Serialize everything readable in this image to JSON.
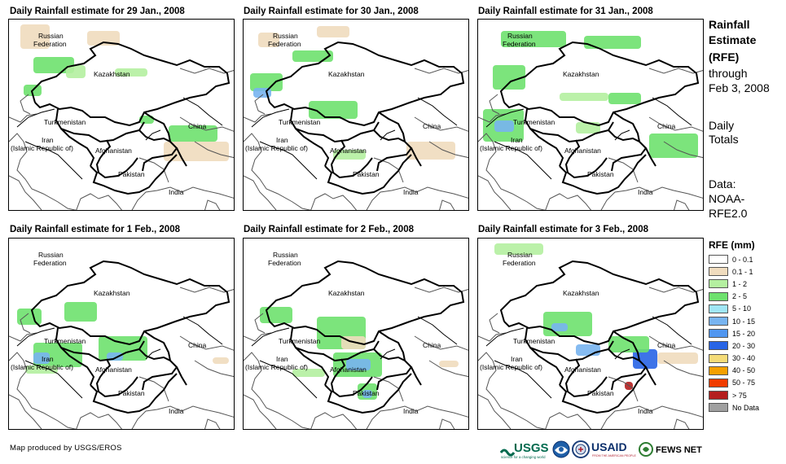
{
  "panels": [
    {
      "title": "Daily Rainfall estimate for 29 Jan., 2008",
      "date": "29 Jan."
    },
    {
      "title": "Daily Rainfall estimate for 30 Jan., 2008",
      "date": "30 Jan."
    },
    {
      "title": "Daily Rainfall estimate for 31 Jan., 2008",
      "date": "31 Jan."
    },
    {
      "title": "Daily Rainfall estimate for 1 Feb., 2008",
      "date": "1 Feb."
    },
    {
      "title": "Daily Rainfall estimate for 2 Feb., 2008",
      "date": "2 Feb."
    },
    {
      "title": "Daily Rainfall estimate for 3 Feb., 2008",
      "date": "3 Feb."
    }
  ],
  "map_labels": {
    "russia_1": "Russian",
    "russia_2": "Federation",
    "kazakhstan": "Kazakhstan",
    "turkmenistan": "Turkmenistan",
    "iran_1": "Iran",
    "iran_2": "(Islamic Republic of)",
    "afghanistan": "Afghanistan",
    "pakistan": "Pakistan",
    "china": "China",
    "india": "India"
  },
  "side_panel": {
    "title_line1": "Rainfall",
    "title_line2": "Estimate",
    "title_line3": "(RFE)",
    "through": "through",
    "through_date": "Feb 3, 2008",
    "daily": "Daily",
    "totals": "Totals",
    "data_label": "Data:",
    "data_source_1": "NOAA-",
    "data_source_2": "RFE2.0"
  },
  "legend": {
    "title": "RFE (mm)",
    "items": [
      {
        "label": "0 - 0.1",
        "color": "#ffffff"
      },
      {
        "label": "0.1 - 1",
        "color": "#f0dcbe"
      },
      {
        "label": "1 - 2",
        "color": "#b4f0a0"
      },
      {
        "label": "2 - 5",
        "color": "#6ee16e"
      },
      {
        "label": "5 - 10",
        "color": "#a0e6f5"
      },
      {
        "label": "10 - 15",
        "color": "#78b4f0"
      },
      {
        "label": "15 - 20",
        "color": "#5096f0"
      },
      {
        "label": "20 - 30",
        "color": "#2864e6"
      },
      {
        "label": "30 - 40",
        "color": "#f5dc78"
      },
      {
        "label": "40 - 50",
        "color": "#f5a000"
      },
      {
        "label": "50 - 75",
        "color": "#f03c00"
      },
      {
        "label": "> 75",
        "color": "#b41e1e"
      },
      {
        "label": "No Data",
        "color": "#a0a0a0"
      }
    ]
  },
  "credit": "Map produced by USGS/EROS",
  "logos": {
    "usgs": "USGS",
    "usgs_tagline": "science for a changing world",
    "usaid": "USAID",
    "usaid_tagline": "FROM THE AMERICAN PEOPLE",
    "fews": "FEWS NET"
  }
}
